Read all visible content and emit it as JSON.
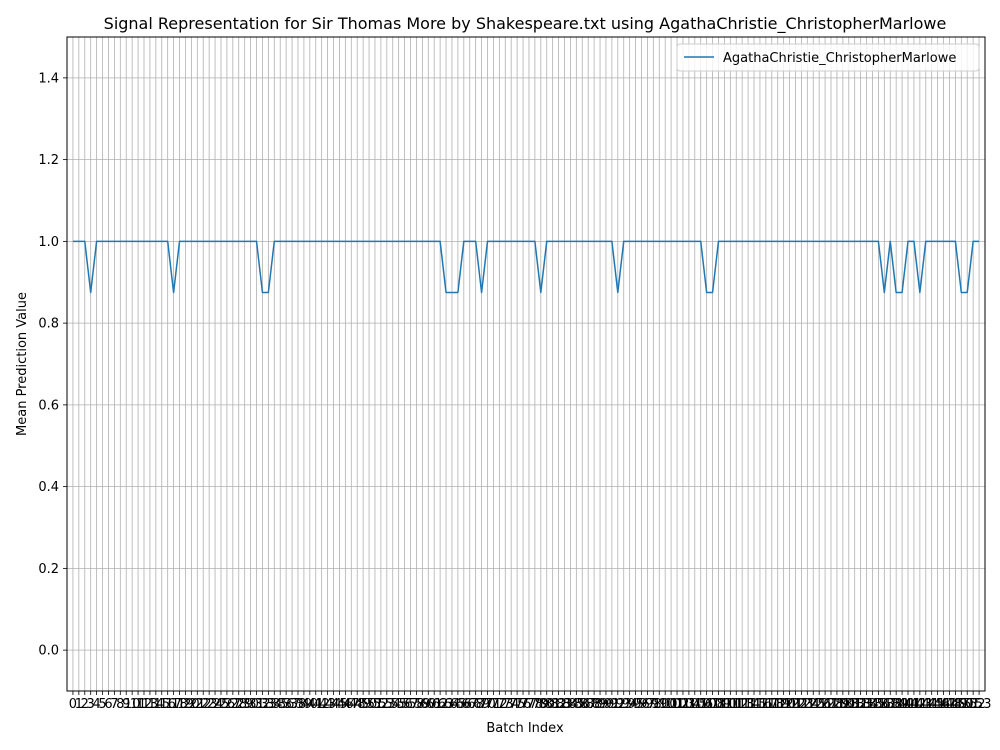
{
  "chart_data": {
    "type": "line",
    "title": "Signal Representation for Sir Thomas More by Shakespeare.txt using AgathaChristie_ChristopherMarlowe",
    "xlabel": "Batch Index",
    "ylabel": "Mean Prediction Value",
    "xlim": [
      -1.0,
      154.0
    ],
    "ylim": [
      -0.1,
      1.5
    ],
    "yticks": [
      0.0,
      0.2,
      0.4,
      0.6,
      0.8,
      1.0,
      1.2,
      1.4
    ],
    "ytick_labels": [
      "0.0",
      "0.2",
      "0.4",
      "0.6",
      "0.8",
      "1.0",
      "1.2",
      "1.4"
    ],
    "grid": true,
    "legend_position": "top-right",
    "series": [
      {
        "name": "AgathaChristie_ChristopherMarlowe",
        "color": "#1f77b4",
        "x": [
          0,
          1,
          2,
          3,
          4,
          5,
          6,
          7,
          8,
          9,
          10,
          11,
          12,
          13,
          14,
          15,
          16,
          17,
          18,
          19,
          20,
          21,
          22,
          23,
          24,
          25,
          26,
          27,
          28,
          29,
          30,
          31,
          32,
          33,
          34,
          35,
          36,
          37,
          38,
          39,
          40,
          41,
          42,
          43,
          44,
          45,
          46,
          47,
          48,
          49,
          50,
          51,
          52,
          53,
          54,
          55,
          56,
          57,
          58,
          59,
          60,
          61,
          62,
          63,
          64,
          65,
          66,
          67,
          68,
          69,
          70,
          71,
          72,
          73,
          74,
          75,
          76,
          77,
          78,
          79,
          80,
          81,
          82,
          83,
          84,
          85,
          86,
          87,
          88,
          89,
          90,
          91,
          92,
          93,
          94,
          95,
          96,
          97,
          98,
          99,
          100,
          101,
          102,
          103,
          104,
          105,
          106,
          107,
          108,
          109,
          110,
          111,
          112,
          113,
          114,
          115,
          116,
          117,
          118,
          119,
          120,
          121,
          122,
          123,
          124,
          125,
          126,
          127,
          128,
          129,
          130,
          131,
          132,
          133,
          134,
          135,
          136,
          137,
          138,
          139,
          140,
          141,
          142,
          143,
          144,
          145,
          146,
          147,
          148,
          149,
          150,
          151,
          152,
          153
        ],
        "values": [
          1.0,
          1.0,
          1.0,
          0.875,
          1.0,
          1.0,
          1.0,
          1.0,
          1.0,
          1.0,
          1.0,
          1.0,
          1.0,
          1.0,
          1.0,
          1.0,
          1.0,
          0.875,
          1.0,
          1.0,
          1.0,
          1.0,
          1.0,
          1.0,
          1.0,
          1.0,
          1.0,
          1.0,
          1.0,
          1.0,
          1.0,
          1.0,
          0.875,
          0.875,
          1.0,
          1.0,
          1.0,
          1.0,
          1.0,
          1.0,
          1.0,
          1.0,
          1.0,
          1.0,
          1.0,
          1.0,
          1.0,
          1.0,
          1.0,
          1.0,
          1.0,
          1.0,
          1.0,
          1.0,
          1.0,
          1.0,
          1.0,
          1.0,
          1.0,
          1.0,
          1.0,
          1.0,
          1.0,
          0.875,
          0.875,
          0.875,
          1.0,
          1.0,
          1.0,
          0.875,
          1.0,
          1.0,
          1.0,
          1.0,
          1.0,
          1.0,
          1.0,
          1.0,
          1.0,
          0.875,
          1.0,
          1.0,
          1.0,
          1.0,
          1.0,
          1.0,
          1.0,
          1.0,
          1.0,
          1.0,
          1.0,
          1.0,
          0.875,
          1.0,
          1.0,
          1.0,
          1.0,
          1.0,
          1.0,
          1.0,
          1.0,
          1.0,
          1.0,
          1.0,
          1.0,
          1.0,
          1.0,
          0.875,
          0.875,
          1.0,
          1.0,
          1.0,
          1.0,
          1.0,
          1.0,
          1.0,
          1.0,
          1.0,
          1.0,
          1.0,
          1.0,
          1.0,
          1.0,
          1.0,
          1.0,
          1.0,
          1.0,
          1.0,
          1.0,
          1.0,
          1.0,
          1.0,
          1.0,
          1.0,
          1.0,
          1.0,
          1.0,
          0.875,
          1.0,
          0.875,
          0.875,
          1.0,
          1.0,
          0.875,
          1.0,
          1.0,
          1.0,
          1.0,
          1.0,
          1.0,
          0.875,
          0.875,
          1.0,
          1.0
        ]
      }
    ]
  }
}
